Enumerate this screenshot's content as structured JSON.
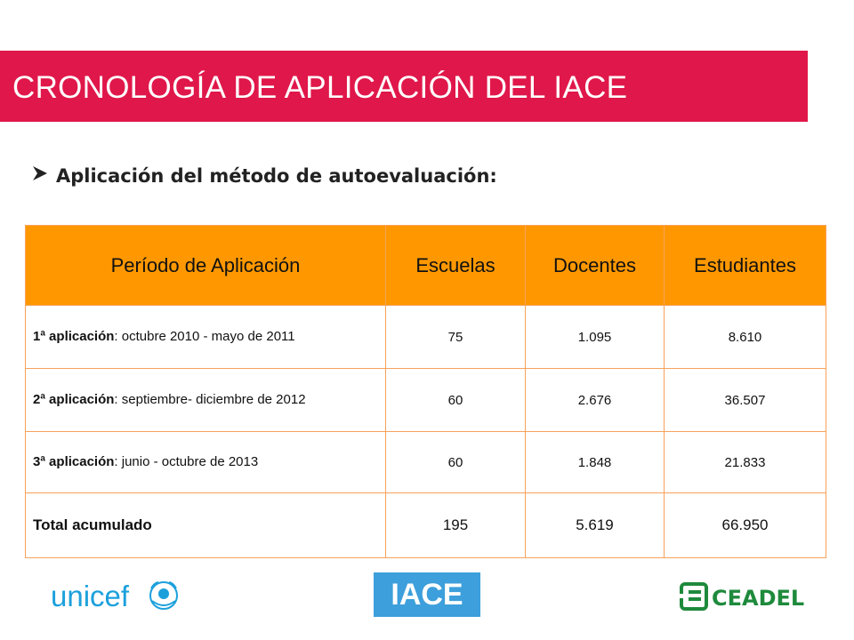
{
  "slide": {
    "title": "CRONOLOGÍA DE APLICACIÓN DEL IACE",
    "subtitle": "Aplicación del método de autoevaluación:"
  },
  "table": {
    "headers": [
      "Período de Aplicación",
      "Escuelas",
      "Docentes",
      "Estudiantes"
    ],
    "rows": [
      {
        "label": "1ª aplicación",
        "period": ": octubre 2010 - mayo de 2011",
        "escuelas": "75",
        "docentes": "1.095",
        "estudiantes": "8.610"
      },
      {
        "label": "2ª aplicación",
        "period": ": septiembre- diciembre de 2012",
        "escuelas": "60",
        "docentes": "2.676",
        "estudiantes": "36.507"
      },
      {
        "label": "3ª aplicación",
        "period": ": junio - octubre de 2013",
        "escuelas": "60",
        "docentes": "1.848",
        "estudiantes": "21.833"
      }
    ],
    "total": {
      "label": "Total acumulado",
      "escuelas": "195",
      "docentes": "5.619",
      "estudiantes": "66.950"
    }
  },
  "logos": {
    "unicef": "unicef",
    "iace": "IACE",
    "ceadel": "CEADEL"
  },
  "colors": {
    "title_bar": "#e0174a",
    "header_fill": "#ff9800",
    "border": "#f7a25a",
    "unicef_blue": "#1ca0dc",
    "iace_blue": "#3d9fdb",
    "ceadel_green": "#1e8a3c"
  }
}
